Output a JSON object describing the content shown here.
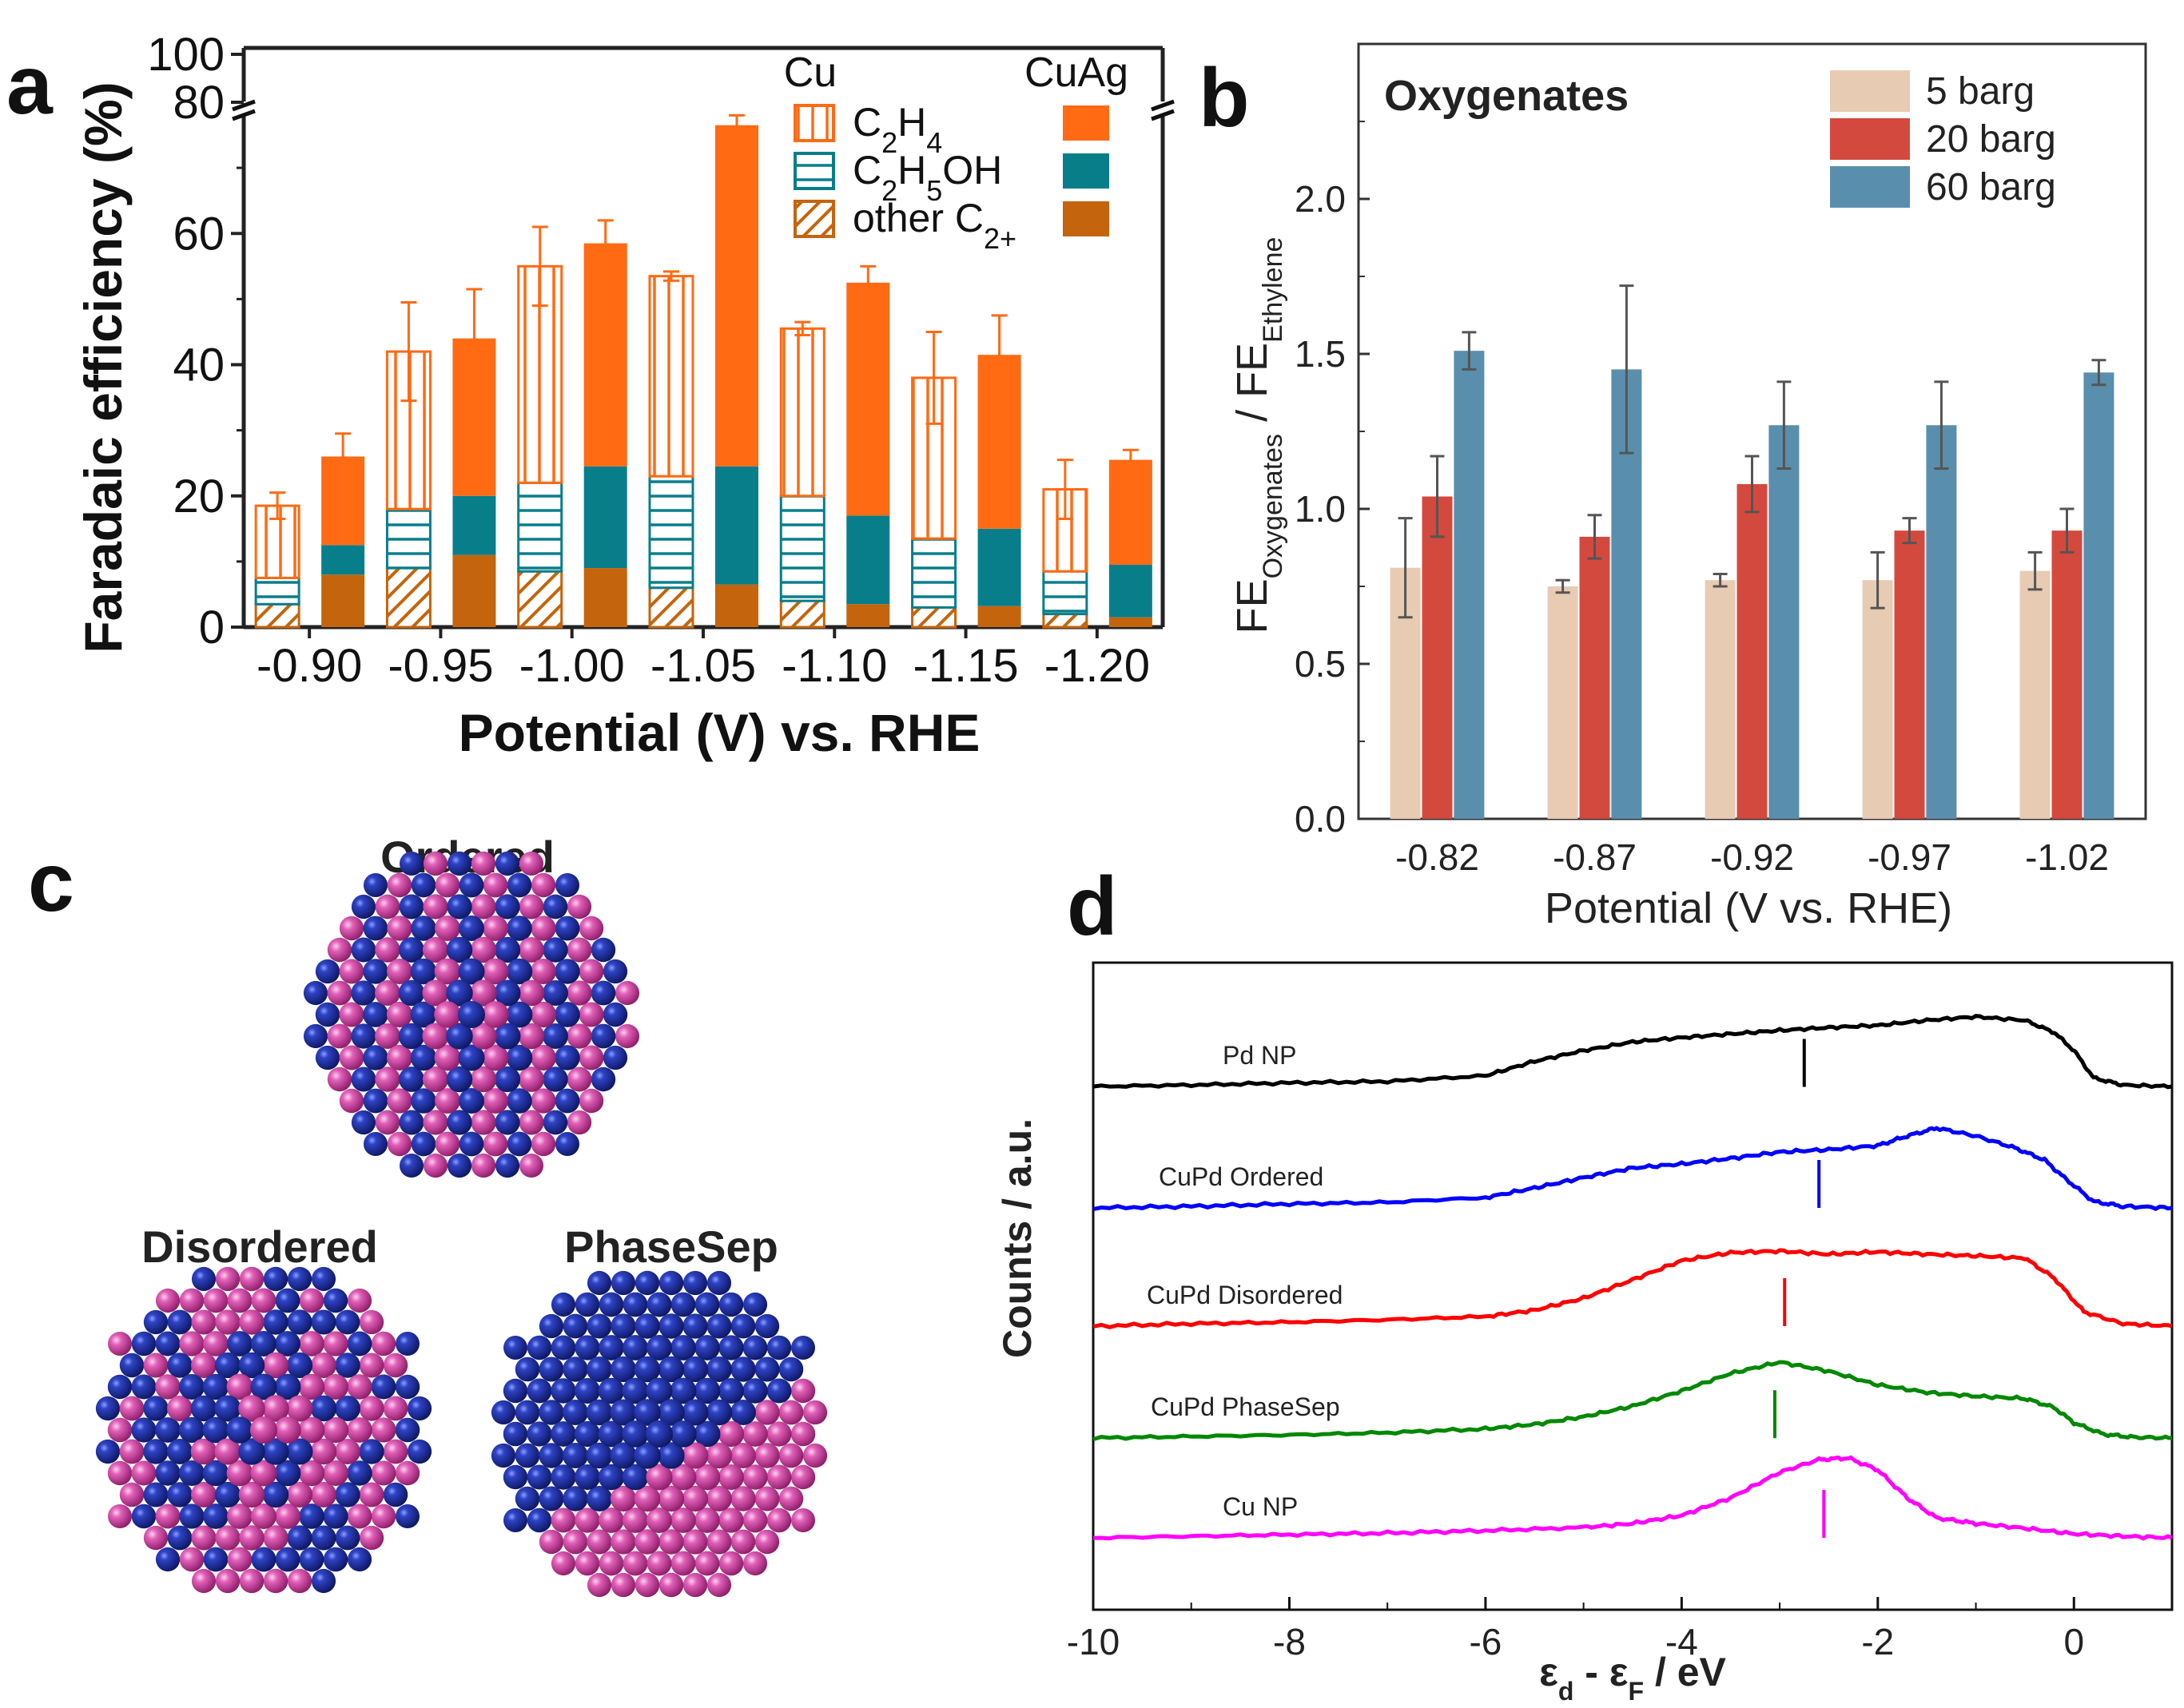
{
  "panel_labels": [
    "a",
    "b",
    "c",
    "d"
  ],
  "chart_data": [
    {
      "panel": "a",
      "type": "bar",
      "xlabel": "Potential (V) vs. RHE",
      "ylabel": "Faradaic efficiency (%)",
      "ylim": [
        0,
        100
      ],
      "axis_break": [
        80,
        100
      ],
      "yticks": [
        "0",
        "20",
        "40",
        "60",
        "80",
        "100"
      ],
      "categories": [
        "-0.90",
        "-0.95",
        "-1.00",
        "-1.05",
        "-1.10",
        "-1.15",
        "-1.20"
      ],
      "legend": {
        "group_headers": [
          "Cu",
          "CuAg"
        ],
        "entries": [
          "C2H4",
          "C2H5OH",
          "other C2+"
        ],
        "placement": "top-right"
      },
      "colors": {
        "C2H4": "#ff6a13",
        "C2H5OH": "#087e8b",
        "other C2+": "#c4640c"
      },
      "catalysts": [
        {
          "name": "Cu",
          "style": "hatched",
          "other_C2plus": [
            3.5,
            9,
            8.5,
            6,
            4,
            3,
            2
          ],
          "C2H5OH": [
            4,
            9,
            13.5,
            17,
            16,
            10.5,
            6.5
          ],
          "C2H4": [
            11,
            24,
            33,
            30.5,
            25.5,
            24.5,
            12.5
          ],
          "total": [
            18.5,
            42,
            55,
            53.5,
            45.5,
            38,
            21
          ],
          "total_error": [
            2,
            7.5,
            6,
            0.7,
            1,
            7,
            4.5
          ]
        },
        {
          "name": "CuAg",
          "style": "filled",
          "other_C2plus": [
            8,
            11,
            9,
            6.5,
            3.5,
            3.2,
            1.5
          ],
          "C2H5OH": [
            4.5,
            9,
            15.5,
            18,
            13.5,
            11.8,
            8
          ],
          "C2H4": [
            13.5,
            24,
            34,
            52,
            35.5,
            26.5,
            16
          ],
          "total": [
            26,
            44,
            58.5,
            76.5,
            52.5,
            41.5,
            25.5
          ],
          "total_error": [
            3.5,
            7.5,
            3.5,
            1.5,
            2.5,
            6,
            1.5
          ]
        }
      ]
    },
    {
      "panel": "b",
      "type": "bar",
      "title": "Oxygenates",
      "xlabel": "Potential (V vs. RHE)",
      "ylabel": "FE Oxygenates / FE Ethylene",
      "ylim": [
        0,
        2.5
      ],
      "yticks": [
        "0.0",
        "0.5",
        "1.0",
        "1.5",
        "2.0"
      ],
      "categories": [
        "-0.82",
        "-0.87",
        "-0.92",
        "-0.97",
        "-1.02"
      ],
      "legend_placement": "top-right",
      "series": [
        {
          "name": "5 barg",
          "color": "#e8cbb3",
          "values": [
            0.81,
            0.75,
            0.77,
            0.77,
            0.8
          ],
          "errors": [
            0.16,
            0.02,
            0.02,
            0.09,
            0.06
          ]
        },
        {
          "name": "20 barg",
          "color": "#d4493e",
          "values": [
            1.04,
            0.91,
            1.08,
            0.93,
            0.93
          ],
          "errors": [
            0.13,
            0.07,
            0.09,
            0.04,
            0.07
          ]
        },
        {
          "name": "60 barg",
          "color": "#5a8ead",
          "values": [
            1.51,
            1.45,
            1.27,
            1.27,
            1.44
          ],
          "errors": [
            0.06,
            0.27,
            0.14,
            0.14,
            0.04
          ]
        }
      ]
    },
    {
      "panel": "d",
      "type": "line",
      "xlabel": "εd - εF / eV",
      "ylabel": "Counts / a.u.",
      "xlim": [
        -10,
        1
      ],
      "xticks": [
        "-10",
        "-8",
        "-6",
        "-4",
        "-2",
        "0"
      ],
      "series": [
        {
          "name": "Pd NP",
          "color": "#000000",
          "d_band_center": -2.75,
          "x": [
            -10,
            -9,
            -8,
            -7,
            -6,
            -5.5,
            -5,
            -4.5,
            -4,
            -3.5,
            -3,
            -2.5,
            -2,
            -1.5,
            -1,
            -0.5,
            -0.2,
            0,
            0.2,
            0.5,
            1
          ],
          "y": [
            0,
            0.02,
            0.05,
            0.07,
            0.15,
            0.35,
            0.5,
            0.62,
            0.68,
            0.73,
            0.78,
            0.82,
            0.85,
            0.92,
            0.97,
            0.92,
            0.75,
            0.5,
            0.12,
            0.02,
            0
          ]
        },
        {
          "name": "CuPd Ordered",
          "color": "#0000ff",
          "d_band_center": -2.6,
          "x": [
            -10,
            -9,
            -8,
            -7,
            -6,
            -5.5,
            -5,
            -4.5,
            -4,
            -3.5,
            -3,
            -2.5,
            -2,
            -1.7,
            -1.4,
            -1,
            -0.6,
            -0.3,
            -0.1,
            0.2,
            0.5,
            1
          ],
          "y": [
            0,
            0.02,
            0.05,
            0.07,
            0.13,
            0.25,
            0.38,
            0.5,
            0.55,
            0.62,
            0.7,
            0.73,
            0.78,
            0.9,
            1.0,
            0.9,
            0.75,
            0.6,
            0.38,
            0.08,
            0.02,
            0
          ]
        },
        {
          "name": "CuPd Disordered",
          "color": "#ff0000",
          "d_band_center": -2.95,
          "x": [
            -10,
            -9,
            -8,
            -7,
            -6,
            -5.5,
            -5,
            -4.5,
            -4,
            -3.5,
            -3,
            -2.5,
            -2,
            -1.5,
            -1,
            -0.5,
            -0.2,
            0.1,
            0.5,
            1
          ],
          "y": [
            0,
            0.03,
            0.05,
            0.08,
            0.12,
            0.2,
            0.35,
            0.58,
            0.82,
            0.92,
            0.94,
            0.9,
            0.93,
            0.9,
            0.88,
            0.85,
            0.6,
            0.18,
            0.03,
            0
          ]
        },
        {
          "name": "CuPd PhaseSep",
          "color": "#008800",
          "d_band_center": -3.05,
          "x": [
            -10,
            -9,
            -8,
            -7,
            -6,
            -5.5,
            -5,
            -4.5,
            -4,
            -3.5,
            -3,
            -2.5,
            -2,
            -1.5,
            -1,
            -0.5,
            -0.2,
            0,
            0.3,
            0.6,
            1
          ],
          "y": [
            0,
            0.02,
            0.04,
            0.07,
            0.12,
            0.18,
            0.28,
            0.42,
            0.62,
            0.85,
            1.0,
            0.88,
            0.7,
            0.6,
            0.55,
            0.52,
            0.4,
            0.2,
            0.05,
            0.01,
            0
          ]
        },
        {
          "name": "Cu NP",
          "color": "#ff00ff",
          "d_band_center": -2.55,
          "x": [
            -10,
            -9,
            -8,
            -7,
            -6,
            -5,
            -4.5,
            -4,
            -3.5,
            -3,
            -2.6,
            -2.3,
            -2,
            -1.7,
            -1.4,
            -1,
            -0.5,
            0,
            0.5,
            1
          ],
          "y": [
            0,
            0.02,
            0.04,
            0.06,
            0.09,
            0.13,
            0.18,
            0.28,
            0.5,
            0.82,
            0.98,
            1.0,
            0.85,
            0.5,
            0.25,
            0.18,
            0.12,
            0.05,
            0.02,
            0
          ]
        }
      ]
    }
  ],
  "panel_c": {
    "titles": [
      "Ordered",
      "Disordered",
      "PhaseSep"
    ],
    "colors": {
      "atom_a": "#1f2f9c",
      "atom_b": "#d23f9e"
    }
  }
}
